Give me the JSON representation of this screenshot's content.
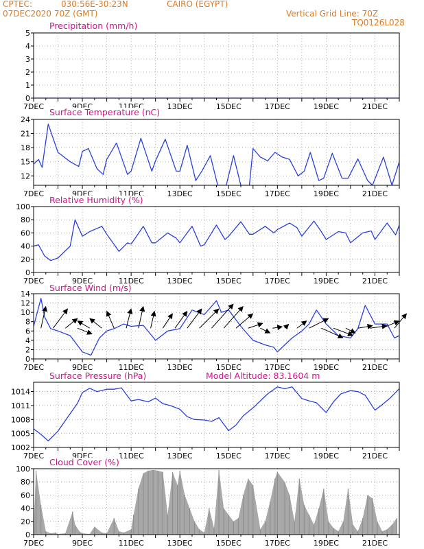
{
  "header": {
    "source": "CPTEC:",
    "coords": "030:56E-30:23N",
    "station": "CAIRO (EGYPT)",
    "run": "07DEC2020 70Z (GMT)",
    "grid_note": "Vertical Grid Line: 70Z",
    "code": "TQ0126L028"
  },
  "colors": {
    "header": "#e07a1f",
    "title": "#d4108a",
    "line": "#2a3fe0",
    "bar": "#a8a8a8",
    "arrow": "#000000"
  },
  "x_ticks": [
    "7DEC",
    "9DEC",
    "11DEC",
    "13DEC",
    "15DEC",
    "17DEC",
    "19DEC",
    "21DEC"
  ],
  "chart_data": [
    {
      "id": "precip",
      "type": "line",
      "title": "Precipitation (mm/h)",
      "ylim": [
        0,
        5
      ],
      "yticks": [
        0,
        1,
        2,
        3,
        4,
        5
      ],
      "x": [
        7,
        22
      ],
      "y": [
        0,
        0
      ]
    },
    {
      "id": "temp",
      "type": "line",
      "title": "Surface Temperature (nC)",
      "ylim": [
        10,
        24
      ],
      "yticks": [
        12,
        15,
        18,
        21,
        24
      ],
      "x": [
        7.0,
        7.2,
        7.35,
        7.6,
        8.0,
        8.5,
        8.85,
        9.0,
        9.25,
        9.6,
        9.85,
        10.0,
        10.4,
        10.85,
        11.0,
        11.4,
        11.85,
        12.0,
        12.4,
        12.85,
        13.0,
        13.3,
        13.65,
        13.9,
        14.25,
        14.55,
        14.9,
        15.2,
        15.5,
        15.85,
        16.0,
        16.3,
        16.6,
        16.9,
        17.2,
        17.5,
        17.85,
        18.1,
        18.35,
        18.7,
        18.9,
        19.25,
        19.65,
        19.9,
        20.3,
        20.7,
        20.9,
        21.35,
        21.7,
        22.0
      ],
      "y": [
        14.5,
        15.5,
        13.8,
        23.0,
        17.0,
        15.0,
        14.0,
        17.2,
        17.8,
        13.5,
        12.3,
        15.5,
        19.0,
        12.3,
        13.0,
        20.0,
        13.0,
        15.2,
        19.8,
        13.0,
        13.0,
        18.5,
        11.0,
        13.0,
        16.3,
        10.0,
        10.0,
        16.3,
        10.0,
        10.0,
        17.8,
        16.0,
        15.2,
        17.0,
        16.0,
        15.5,
        12.0,
        13.0,
        17.0,
        11.0,
        11.5,
        16.8,
        11.5,
        11.5,
        15.6,
        11.0,
        10.0,
        16.0,
        10.0,
        15.0
      ]
    },
    {
      "id": "rh",
      "type": "line",
      "title": "Relative Humidity (%)",
      "ylim": [
        0,
        100
      ],
      "yticks": [
        0,
        20,
        40,
        60,
        80,
        100
      ],
      "x": [
        7.0,
        7.2,
        7.45,
        7.7,
        8.0,
        8.5,
        8.7,
        9.0,
        9.3,
        9.8,
        10.0,
        10.5,
        10.85,
        11.0,
        11.5,
        11.85,
        12.0,
        12.5,
        12.85,
        13.0,
        13.5,
        13.85,
        14.0,
        14.5,
        14.85,
        15.0,
        15.5,
        15.85,
        16.0,
        16.5,
        16.85,
        17.0,
        17.5,
        17.8,
        18.0,
        18.5,
        18.8,
        19.0,
        19.5,
        19.8,
        20.0,
        20.5,
        20.85,
        21.0,
        21.5,
        21.85,
        22.0
      ],
      "y": [
        40,
        42,
        25,
        18,
        22,
        40,
        80,
        55,
        62,
        70,
        58,
        32,
        45,
        43,
        70,
        45,
        45,
        60,
        52,
        45,
        70,
        40,
        42,
        72,
        50,
        55,
        77,
        58,
        58,
        70,
        60,
        65,
        75,
        68,
        55,
        78,
        62,
        50,
        62,
        60,
        45,
        60,
        63,
        50,
        75,
        57,
        72
      ]
    },
    {
      "id": "wind",
      "type": "line",
      "title": "Surface Wind (m/s)",
      "ylim": [
        0,
        14
      ],
      "yticks": [
        0,
        2,
        4,
        6,
        8,
        10,
        12,
        14
      ],
      "x": [
        7.0,
        7.3,
        7.45,
        7.7,
        8.0,
        8.5,
        9.0,
        9.35,
        9.7,
        10.0,
        10.3,
        10.7,
        11.0,
        11.5,
        12.0,
        12.5,
        13.0,
        13.5,
        14.0,
        14.5,
        14.7,
        15.0,
        15.5,
        16.0,
        16.5,
        16.85,
        17.0,
        17.3,
        17.6,
        18.0,
        18.3,
        18.6,
        19.0,
        19.5,
        20.0,
        20.3,
        20.6,
        21.0,
        21.5,
        21.8,
        22.0
      ],
      "y": [
        7,
        13,
        9,
        6.5,
        6,
        5,
        1.5,
        0.8,
        4.5,
        6,
        6.5,
        7.5,
        7,
        7.2,
        4,
        6,
        6.5,
        10.5,
        9.5,
        12.5,
        10,
        10.5,
        7,
        4,
        3,
        2.5,
        1.5,
        3,
        4.5,
        6,
        7.5,
        10.5,
        7.5,
        5,
        4.5,
        6.5,
        11.5,
        7.5,
        7.5,
        4.5,
        5
      ],
      "arrows": [
        {
          "x": 7.3,
          "u": 1.0,
          "v": 4.5
        },
        {
          "x": 7.8,
          "u": 3.0,
          "v": 4.0
        },
        {
          "x": 8.3,
          "u": 2.5,
          "v": 2.0
        },
        {
          "x": 8.8,
          "u": 3.0,
          "v": -1.2
        },
        {
          "x": 9.3,
          "u": -2.5,
          "v": 1.5
        },
        {
          "x": 9.8,
          "u": -2.5,
          "v": 2.0
        },
        {
          "x": 10.3,
          "u": -1.5,
          "v": 3.5
        },
        {
          "x": 10.8,
          "u": 1.0,
          "v": 4.0
        },
        {
          "x": 11.3,
          "u": 1.0,
          "v": 4.5
        },
        {
          "x": 11.8,
          "u": 0.8,
          "v": 3.5
        },
        {
          "x": 12.3,
          "u": 2.0,
          "v": 3.0
        },
        {
          "x": 12.8,
          "u": 2.5,
          "v": 3.5
        },
        {
          "x": 13.3,
          "u": 3.0,
          "v": 4.0
        },
        {
          "x": 13.8,
          "u": 4.0,
          "v": 4.0
        },
        {
          "x": 14.3,
          "u": 4.5,
          "v": 5.0
        },
        {
          "x": 14.8,
          "u": 4.0,
          "v": 4.5
        },
        {
          "x": 15.3,
          "u": 3.5,
          "v": 3.0
        },
        {
          "x": 15.8,
          "u": 3.0,
          "v": 1.0
        },
        {
          "x": 16.3,
          "u": 2.0,
          "v": -1.0
        },
        {
          "x": 16.8,
          "u": 2.0,
          "v": 0.3
        },
        {
          "x": 17.3,
          "u": 0.8,
          "v": 0.8
        },
        {
          "x": 17.8,
          "u": 2.0,
          "v": 1.5
        },
        {
          "x": 18.3,
          "u": 4.0,
          "v": 2.0
        },
        {
          "x": 18.8,
          "u": 4.5,
          "v": -2.0
        },
        {
          "x": 19.3,
          "u": 4.0,
          "v": -1.5
        },
        {
          "x": 19.8,
          "u": 2.0,
          "v": -1.0
        },
        {
          "x": 20.3,
          "u": 3.0,
          "v": 0.5
        },
        {
          "x": 20.8,
          "u": 3.5,
          "v": 0.5
        },
        {
          "x": 21.3,
          "u": 3.5,
          "v": 1.5
        },
        {
          "x": 21.8,
          "u": 2.5,
          "v": 3.0
        }
      ]
    },
    {
      "id": "pres",
      "type": "line",
      "title": "Surface Pressure (hPa)",
      "extra_label": "Model Altitude: 83.1604 m",
      "ylim": [
        1002,
        1016
      ],
      "yticks": [
        1002,
        1005,
        1008,
        1011,
        1014
      ],
      "x": [
        7.0,
        7.3,
        7.6,
        8.0,
        8.4,
        8.8,
        9.0,
        9.3,
        9.6,
        10.0,
        10.3,
        10.6,
        11.0,
        11.3,
        11.7,
        12.0,
        12.3,
        12.6,
        13.0,
        13.3,
        13.6,
        14.0,
        14.3,
        14.6,
        15.0,
        15.3,
        15.6,
        16.0,
        16.3,
        16.6,
        17.0,
        17.3,
        17.6,
        18.0,
        18.3,
        18.6,
        19.0,
        19.3,
        19.6,
        20.0,
        20.3,
        20.6,
        21.0,
        21.3,
        21.6,
        22.0
      ],
      "y": [
        1006,
        1004.8,
        1003.4,
        1005.5,
        1008.5,
        1011.5,
        1013.8,
        1014.7,
        1014.0,
        1014.5,
        1014.5,
        1014.8,
        1012.0,
        1012.3,
        1011.8,
        1012.6,
        1011.4,
        1011.0,
        1010.2,
        1008.6,
        1008.0,
        1007.9,
        1007.6,
        1008.4,
        1005.6,
        1006.8,
        1008.8,
        1010.5,
        1012.0,
        1013.5,
        1015.0,
        1014.6,
        1015.0,
        1012.5,
        1012.0,
        1011.6,
        1009.5,
        1011.8,
        1013.5,
        1014.2,
        1014.0,
        1013.2,
        1010.0,
        1011.2,
        1012.5,
        1014.6
      ]
    },
    {
      "id": "cloud",
      "type": "bar",
      "title": "Cloud Cover (%)",
      "ylim": [
        0,
        100
      ],
      "yticks": [
        0,
        20,
        40,
        60,
        80,
        100
      ],
      "x": [
        7.0,
        7.1,
        7.3,
        7.5,
        7.7,
        7.9,
        8.0,
        8.3,
        8.6,
        8.7,
        8.9,
        9.0,
        9.3,
        9.5,
        9.8,
        10.0,
        10.3,
        10.5,
        10.7,
        11.0,
        11.1,
        11.3,
        11.5,
        11.7,
        11.9,
        12.1,
        12.3,
        12.5,
        12.7,
        12.9,
        13.0,
        13.2,
        13.4,
        13.6,
        13.8,
        14.0,
        14.2,
        14.4,
        14.6,
        14.8,
        15.0,
        15.2,
        15.4,
        15.6,
        15.8,
        16.0,
        16.3,
        16.5,
        16.7,
        16.9,
        17.0,
        17.3,
        17.5,
        17.7,
        17.9,
        18.1,
        18.3,
        18.5,
        18.7,
        18.9,
        19.1,
        19.3,
        19.5,
        19.7,
        19.9,
        20.1,
        20.3,
        20.5,
        20.7,
        20.9,
        21.1,
        21.3,
        21.5,
        21.7,
        21.9
      ],
      "y": [
        10,
        97,
        45,
        5,
        2,
        3,
        1,
        2,
        35,
        15,
        4,
        2,
        1,
        12,
        3,
        2,
        25,
        5,
        3,
        8,
        30,
        70,
        93,
        97,
        98,
        97,
        95,
        30,
        95,
        75,
        97,
        60,
        40,
        20,
        8,
        3,
        40,
        10,
        98,
        40,
        30,
        20,
        25,
        60,
        85,
        75,
        8,
        20,
        50,
        85,
        95,
        80,
        60,
        20,
        85,
        45,
        30,
        15,
        40,
        70,
        20,
        10,
        5,
        20,
        70,
        15,
        5,
        25,
        60,
        55,
        20,
        5,
        8,
        15,
        25
      ]
    }
  ]
}
